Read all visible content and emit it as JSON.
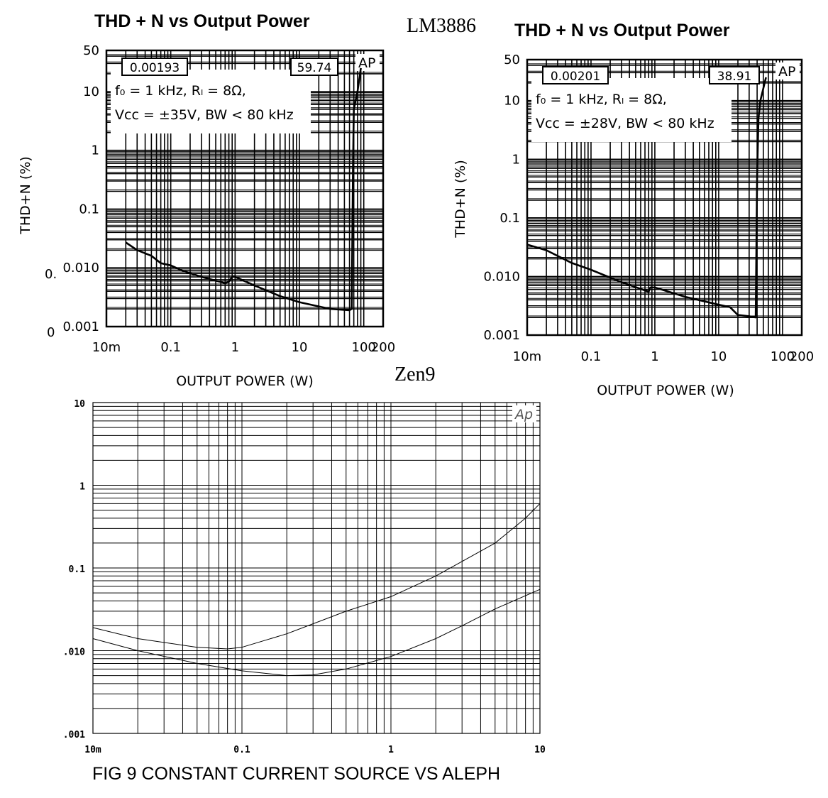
{
  "labels": {
    "lm": "LM3886",
    "zen": "Zen9",
    "stray1": "0.",
    "stray2": "0"
  },
  "chart_data": [
    {
      "type": "line",
      "title": "THD + N vs Output Power",
      "xlabel": "OUTPUT POWER (W)",
      "ylabel": "THD+N (%)",
      "xscale": "log",
      "yscale": "log",
      "xlim": [
        0.01,
        200
      ],
      "ylim": [
        0.001,
        50
      ],
      "xticks": [
        {
          "v": 0.01,
          "t": "10m"
        },
        {
          "v": 0.1,
          "t": "0.1"
        },
        {
          "v": 1,
          "t": "1"
        },
        {
          "v": 10,
          "t": "10"
        },
        {
          "v": 100,
          "t": "100"
        },
        {
          "v": 200,
          "t": "200"
        }
      ],
      "yticks": [
        {
          "v": 50,
          "t": "50"
        },
        {
          "v": 10,
          "t": "10"
        },
        {
          "v": 1,
          "t": "1"
        },
        {
          "v": 0.1,
          "t": "0.1"
        },
        {
          "v": 0.01,
          "t": "0.010"
        },
        {
          "v": 0.001,
          "t": "0.001"
        }
      ],
      "boxes": [
        "0.00193",
        "59.74"
      ],
      "ap": "AP",
      "cond1": "f₀ = 1 kHz, Rₗ = 8Ω,",
      "cond2": "Vᴄᴄ = ±35V, BW < 80 kHz",
      "series": [
        {
          "name": "THD+N",
          "x": [
            0.02,
            0.03,
            0.05,
            0.07,
            0.1,
            0.15,
            0.3,
            0.7,
            0.8,
            0.9,
            1,
            2,
            5,
            10,
            30,
            60,
            65,
            68,
            70,
            80,
            90
          ],
          "y": [
            0.027,
            0.02,
            0.016,
            0.012,
            0.011,
            0.009,
            0.007,
            0.0055,
            0.0058,
            0.007,
            0.007,
            0.005,
            0.0033,
            0.0026,
            0.002,
            0.0019,
            0.002,
            0.5,
            5,
            10,
            25
          ]
        }
      ]
    },
    {
      "type": "line",
      "title": "THD + N vs Output Power",
      "xlabel": "OUTPUT POWER (W)",
      "ylabel": "THD+N (%)",
      "xscale": "log",
      "yscale": "log",
      "xlim": [
        0.01,
        200
      ],
      "ylim": [
        0.001,
        50
      ],
      "xticks": [
        {
          "v": 0.01,
          "t": "10m"
        },
        {
          "v": 0.1,
          "t": "0.1"
        },
        {
          "v": 1,
          "t": "1"
        },
        {
          "v": 10,
          "t": "10"
        },
        {
          "v": 100,
          "t": "100"
        },
        {
          "v": 200,
          "t": "200"
        }
      ],
      "yticks": [
        {
          "v": 50,
          "t": "50"
        },
        {
          "v": 10,
          "t": "10"
        },
        {
          "v": 1,
          "t": "1"
        },
        {
          "v": 0.1,
          "t": "0.1"
        },
        {
          "v": 0.01,
          "t": "0.010"
        },
        {
          "v": 0.001,
          "t": "0.001"
        }
      ],
      "boxes": [
        "0.00201",
        "38.91"
      ],
      "ap": "AP",
      "cond1": "f₀ = 1 kHz, Rₗ = 8Ω,",
      "cond2": "Vᴄᴄ = ±28V, BW < 80 kHz",
      "series": [
        {
          "name": "THD+N",
          "x": [
            0.01,
            0.02,
            0.05,
            0.1,
            0.3,
            0.8,
            0.85,
            1,
            3,
            10,
            15,
            20,
            30,
            38,
            40,
            42,
            45,
            55
          ],
          "y": [
            0.035,
            0.028,
            0.017,
            0.013,
            0.008,
            0.0055,
            0.0065,
            0.0065,
            0.0045,
            0.0033,
            0.003,
            0.0022,
            0.0021,
            0.002,
            0.5,
            5,
            10,
            25
          ]
        }
      ]
    },
    {
      "type": "line",
      "title": "FIG 9  CONSTANT CURRENT SOURCE VS ALEPH",
      "xlabel": "",
      "ylabel": "",
      "xscale": "log",
      "yscale": "log",
      "xlim": [
        0.01,
        10
      ],
      "ylim": [
        0.001,
        10
      ],
      "xticks": [
        {
          "v": 0.01,
          "t": "10m"
        },
        {
          "v": 0.1,
          "t": "0.1"
        },
        {
          "v": 1,
          "t": "1"
        },
        {
          "v": 10,
          "t": "10"
        }
      ],
      "yticks": [
        {
          "v": 10,
          "t": "10"
        },
        {
          "v": 1,
          "t": "1"
        },
        {
          "v": 0.1,
          "t": "0.1"
        },
        {
          "v": 0.01,
          "t": ".010"
        },
        {
          "v": 0.001,
          "t": ".001"
        }
      ],
      "ap": "Ap",
      "series": [
        {
          "name": "upper",
          "x": [
            0.01,
            0.02,
            0.05,
            0.08,
            0.1,
            0.2,
            0.5,
            1,
            2,
            3,
            5,
            8,
            10
          ],
          "y": [
            0.019,
            0.014,
            0.011,
            0.0105,
            0.011,
            0.016,
            0.03,
            0.045,
            0.08,
            0.12,
            0.2,
            0.4,
            0.6
          ]
        },
        {
          "name": "lower",
          "x": [
            0.01,
            0.02,
            0.05,
            0.1,
            0.2,
            0.3,
            0.5,
            1,
            2,
            3,
            5,
            10
          ],
          "y": [
            0.014,
            0.01,
            0.007,
            0.0057,
            0.005,
            0.0051,
            0.006,
            0.0085,
            0.014,
            0.02,
            0.032,
            0.055
          ]
        }
      ]
    }
  ]
}
